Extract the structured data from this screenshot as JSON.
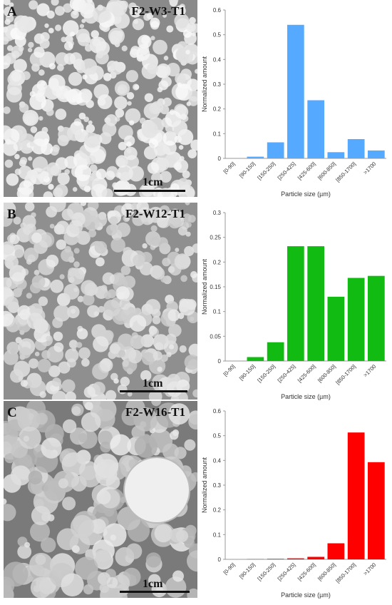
{
  "panels": [
    {
      "letter": "A",
      "sample": "F2-W3-T1",
      "scale": "1cm",
      "photo_tone": "bright"
    },
    {
      "letter": "B",
      "sample": "F2-W12-T1",
      "scale": "1cm",
      "photo_tone": "medium"
    },
    {
      "letter": "C",
      "sample": "F2-W16-T1",
      "scale": "1cm",
      "photo_tone": "dark"
    }
  ],
  "chart_data": [
    {
      "type": "bar",
      "categories": [
        "[0-90]",
        "[90-150]",
        "[150-250]",
        "[250-425]",
        "[425-600]",
        "[600-850]",
        "[850-1700]",
        ">1700"
      ],
      "values": [
        0.0,
        0.007,
        0.065,
        0.54,
        0.235,
        0.025,
        0.078,
        0.032
      ],
      "color": "#55aaff",
      "xlabel": "Particle size (µm)",
      "ylabel": "Normalized amount",
      "ylim": [
        0,
        0.6
      ],
      "yticks": [
        "0",
        "0.1",
        "0.2",
        "0.3",
        "0.4",
        "0.5",
        "0.6"
      ],
      "grid": false
    },
    {
      "type": "bar",
      "categories": [
        "[0-90]",
        "[90-150]",
        "[150-250]",
        "[250-425]",
        "[425-600]",
        "[600-850]",
        "[850-1700]",
        ">1700"
      ],
      "values": [
        0.0,
        0.008,
        0.038,
        0.232,
        0.232,
        0.13,
        0.168,
        0.172
      ],
      "color": "#11bb11",
      "xlabel": "Particle size (µm)",
      "ylabel": "Normalized amount",
      "ylim": [
        0,
        0.3
      ],
      "yticks": [
        "0",
        "0.05",
        "0.1",
        "0.15",
        "0.2",
        "0.25",
        "0.3"
      ],
      "grid": false
    },
    {
      "type": "bar",
      "categories": [
        "[0-90]",
        "[90-150]",
        "[150-250]",
        "[250-425]",
        "[425-600]",
        "[600-850]",
        "[850-1700]",
        ">1700"
      ],
      "values": [
        0.0,
        0.001,
        0.002,
        0.004,
        0.01,
        0.065,
        0.513,
        0.393
      ],
      "color": "#ff0000",
      "xlabel": "Particle size (µm)",
      "ylabel": "Normalized amount",
      "ylim": [
        0,
        0.6
      ],
      "yticks": [
        "0",
        "0.1",
        "0.2",
        "0.3",
        "0.4",
        "0.5",
        "0.6"
      ],
      "grid": false
    }
  ]
}
